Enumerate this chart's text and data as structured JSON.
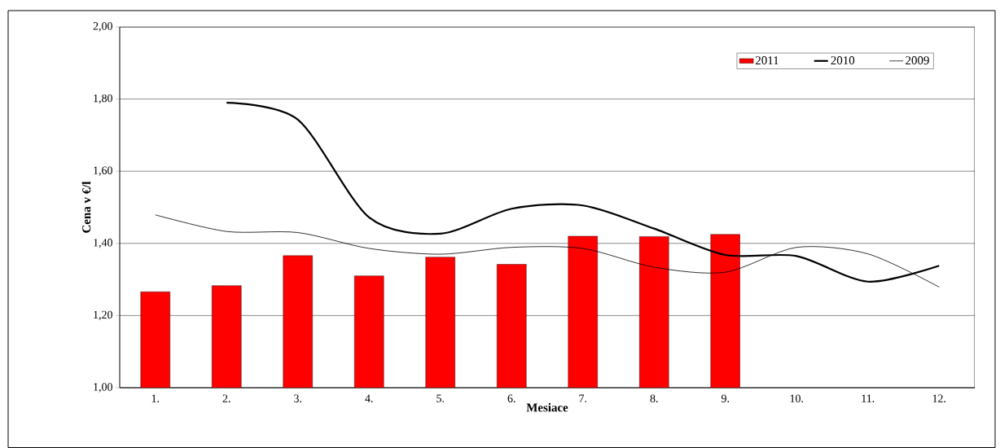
{
  "chart_data": {
    "type": "bar",
    "xlabel": "Mesiace",
    "ylabel": "Cena v €/l",
    "categories": [
      "1.",
      "2.",
      "3.",
      "4.",
      "5.",
      "6.",
      "7.",
      "8.",
      "9.",
      "10.",
      "11.",
      "12."
    ],
    "series": [
      {
        "name": "2011",
        "color": "#ff0000",
        "values": [
          1.266,
          1.283,
          1.366,
          1.31,
          1.362,
          1.342,
          1.42,
          1.419,
          1.425,
          null,
          null,
          null
        ]
      },
      {
        "name": "2010",
        "type": "line",
        "color": "#000000",
        "values": [
          null,
          1.79,
          1.743,
          1.472,
          1.427,
          1.496,
          1.505,
          1.441,
          1.368,
          1.365,
          1.294,
          1.338
        ]
      },
      {
        "name": "2009",
        "type": "line",
        "color": "#000000",
        "values": [
          1.479,
          1.433,
          1.43,
          1.386,
          1.37,
          1.389,
          1.386,
          1.334,
          1.32,
          1.389,
          1.371,
          1.279
        ]
      }
    ],
    "ylim": [
      1.0,
      2.0
    ],
    "yticks": [
      {
        "value": 1.0,
        "label": "1,00"
      },
      {
        "value": 1.2,
        "label": "1,20"
      },
      {
        "value": 1.4,
        "label": "1,40"
      },
      {
        "value": 1.6,
        "label": "1,60"
      },
      {
        "value": 1.8,
        "label": "1,80"
      },
      {
        "value": 2.0,
        "label": "2,00"
      }
    ],
    "grid": "y",
    "legend": "top right",
    "marker": "none",
    "line_style": "solid"
  }
}
